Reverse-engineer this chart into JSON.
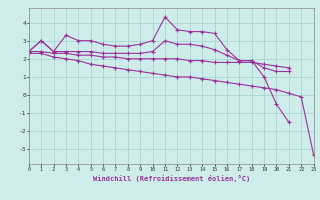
{
  "xlabel": "Windchill (Refroidissement éolien,°C)",
  "background_color": "#ceecea",
  "grid_color": "#aad6d2",
  "line_color": "#993399",
  "hours": [
    0,
    1,
    2,
    3,
    4,
    5,
    6,
    7,
    8,
    9,
    10,
    11,
    12,
    13,
    14,
    15,
    16,
    17,
    18,
    19,
    20,
    21,
    22,
    23
  ],
  "series1": [
    2.4,
    3.0,
    2.4,
    3.3,
    3.0,
    3.0,
    2.8,
    2.7,
    2.7,
    2.8,
    3.0,
    4.3,
    3.6,
    3.5,
    3.5,
    3.4,
    2.5,
    1.9,
    1.9,
    1.0,
    -0.5,
    -1.5,
    null,
    null
  ],
  "series2": [
    2.4,
    3.0,
    2.4,
    2.4,
    2.4,
    2.4,
    2.3,
    2.3,
    2.3,
    2.3,
    2.4,
    3.0,
    2.8,
    2.8,
    2.7,
    2.5,
    2.2,
    1.9,
    1.9,
    1.5,
    1.3,
    1.3,
    null,
    null
  ],
  "series3": [
    2.4,
    2.4,
    2.3,
    2.3,
    2.2,
    2.2,
    2.1,
    2.1,
    2.0,
    2.0,
    2.0,
    2.0,
    2.0,
    1.9,
    1.9,
    1.8,
    1.8,
    1.8,
    1.8,
    1.7,
    1.6,
    1.5,
    null,
    null
  ],
  "series4": [
    2.3,
    2.3,
    2.1,
    2.0,
    1.9,
    1.7,
    1.6,
    1.5,
    1.4,
    1.3,
    1.2,
    1.1,
    1.0,
    1.0,
    0.9,
    0.8,
    0.7,
    0.6,
    0.5,
    0.4,
    0.3,
    0.1,
    -0.1,
    -3.3
  ],
  "ylim": [
    -3.8,
    4.8
  ],
  "yticks": [
    -3,
    -2,
    -1,
    0,
    1,
    2,
    3,
    4
  ],
  "xlim": [
    0,
    23
  ]
}
